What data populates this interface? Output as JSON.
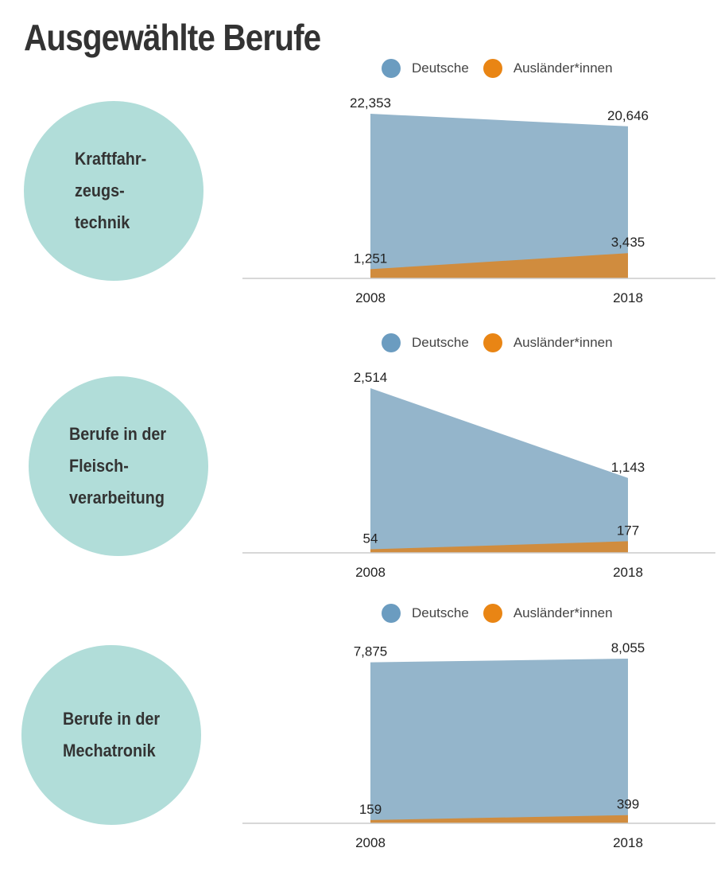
{
  "title": "Ausgewählte Berufe",
  "legend": {
    "german_label": "Deutsche",
    "foreign_label": "Ausländer*innen",
    "german_color": "#6b9cc0",
    "foreign_color": "#e98514"
  },
  "colors": {
    "german_area": "#94b5cb",
    "foreign_area": "#d08c3e",
    "circle": "#b1ddd9",
    "baseline": "#cccccc"
  },
  "chart_data": [
    {
      "type": "area",
      "title": "Kraftfahr-\nzeugs-\ntechnik",
      "x": [
        "2008",
        "2018"
      ],
      "series": [
        {
          "name": "Deutsche",
          "values": [
            22353,
            20646
          ],
          "labels": [
            "22,353",
            "20,646"
          ]
        },
        {
          "name": "Ausländer*innen",
          "values": [
            1251,
            3435
          ],
          "labels": [
            "1,251",
            "3,435"
          ]
        }
      ],
      "ylim": [
        0,
        22353
      ]
    },
    {
      "type": "area",
      "title": "Berufe in der\nFleisch-\nverarbeitung",
      "x": [
        "2008",
        "2018"
      ],
      "series": [
        {
          "name": "Deutsche",
          "values": [
            2514,
            1143
          ],
          "labels": [
            "2,514",
            "1,143"
          ]
        },
        {
          "name": "Ausländer*innen",
          "values": [
            54,
            177
          ],
          "labels": [
            "54",
            "177"
          ]
        }
      ],
      "ylim": [
        0,
        2514
      ]
    },
    {
      "type": "area",
      "title": "Berufe in der\nMechatronik",
      "x": [
        "2008",
        "2018"
      ],
      "series": [
        {
          "name": "Deutsche",
          "values": [
            7875,
            8055
          ],
          "labels": [
            "7,875",
            "8,055"
          ]
        },
        {
          "name": "Ausländer*innen",
          "values": [
            159,
            399
          ],
          "labels": [
            "159",
            "399"
          ]
        }
      ],
      "ylim": [
        0,
        8055
      ]
    }
  ]
}
